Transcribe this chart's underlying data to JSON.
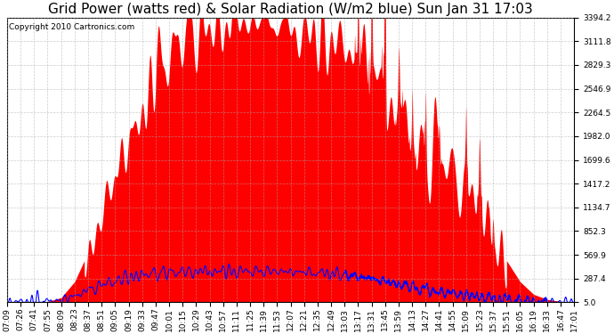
{
  "title": "Grid Power (watts red) & Solar Radiation (W/m2 blue) Sun Jan 31 17:03",
  "copyright_text": "Copyright 2010 Cartronics.com",
  "background_color": "#ffffff",
  "plot_bg_color": "#ffffff",
  "grid_color": "#aaaaaa",
  "yticks": [
    5.0,
    287.4,
    569.9,
    852.3,
    1134.7,
    1417.2,
    1699.6,
    1982.0,
    2264.5,
    2546.9,
    2829.3,
    3111.8,
    3394.2
  ],
  "ymin": 5.0,
  "ymax": 3394.2,
  "x_labels": [
    "07:09",
    "07:26",
    "07:41",
    "07:55",
    "08:09",
    "08:23",
    "08:37",
    "08:51",
    "09:05",
    "09:19",
    "09:33",
    "09:47",
    "10:01",
    "10:15",
    "10:29",
    "10:43",
    "10:57",
    "11:11",
    "11:25",
    "11:39",
    "11:53",
    "12:07",
    "12:21",
    "12:35",
    "12:49",
    "13:03",
    "13:17",
    "13:31",
    "13:45",
    "13:59",
    "14:13",
    "14:27",
    "14:41",
    "14:55",
    "15:09",
    "15:23",
    "15:37",
    "15:51",
    "16:05",
    "16:19",
    "16:33",
    "16:47",
    "17:01"
  ],
  "fill_color": "red",
  "line_color": "blue",
  "title_fontsize": 11,
  "axis_fontsize": 6.5,
  "copyright_fontsize": 6.5,
  "solar_power_base": [
    5,
    5,
    5,
    15,
    60,
    250,
    600,
    1050,
    1500,
    1900,
    2300,
    2700,
    3000,
    3150,
    3200,
    3250,
    3300,
    3350,
    3350,
    3350,
    3300,
    3250,
    3200,
    3150,
    3100,
    3050,
    2950,
    2750,
    2500,
    2200,
    1950,
    1800,
    1700,
    1600,
    1400,
    1100,
    800,
    500,
    250,
    100,
    40,
    15,
    5
  ],
  "solar_radiation_base": [
    5,
    5,
    5,
    10,
    30,
    80,
    150,
    210,
    260,
    300,
    330,
    350,
    360,
    365,
    370,
    372,
    373,
    374,
    375,
    374,
    372,
    368,
    362,
    355,
    345,
    330,
    310,
    285,
    255,
    220,
    185,
    155,
    130,
    110,
    88,
    68,
    50,
    35,
    22,
    14,
    9,
    6,
    5
  ],
  "spike_positions": [
    26,
    27,
    28,
    29,
    30,
    31,
    32,
    34,
    35,
    36
  ],
  "spike_heights": [
    800,
    1400,
    1800,
    600,
    500,
    700,
    400,
    600,
    500,
    300
  ]
}
